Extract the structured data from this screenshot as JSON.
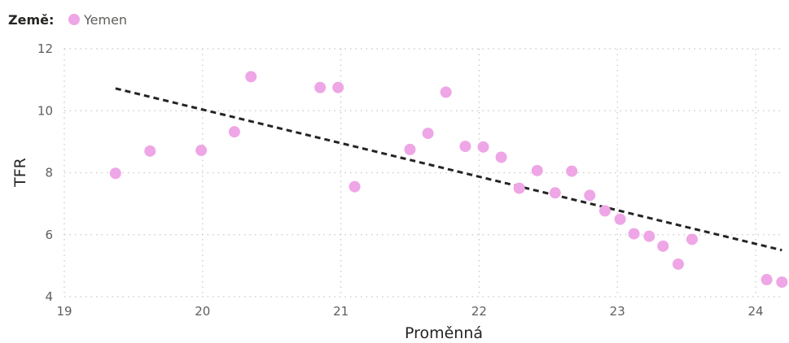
{
  "legend": {
    "title": "Země:",
    "items": [
      {
        "label": "Yemen",
        "color": "#eea6e6"
      }
    ]
  },
  "chart_data": {
    "type": "scatter",
    "title": "",
    "xlabel": "Proměnná",
    "ylabel": "TFR",
    "xlim": [
      19,
      24.2
    ],
    "ylim": [
      4,
      12
    ],
    "x_ticks": [
      19,
      20,
      21,
      22,
      23,
      24
    ],
    "y_ticks": [
      4,
      6,
      8,
      10,
      12
    ],
    "grid": "dotted",
    "legend_position": "top-left",
    "series": [
      {
        "name": "Yemen",
        "color": "#eea6e6",
        "points": [
          {
            "x": 19.37,
            "y": 7.98
          },
          {
            "x": 19.62,
            "y": 8.7
          },
          {
            "x": 19.99,
            "y": 8.72
          },
          {
            "x": 20.23,
            "y": 9.32
          },
          {
            "x": 20.35,
            "y": 11.1
          },
          {
            "x": 20.85,
            "y": 10.75
          },
          {
            "x": 20.98,
            "y": 10.75
          },
          {
            "x": 21.1,
            "y": 7.55
          },
          {
            "x": 21.5,
            "y": 8.75
          },
          {
            "x": 21.63,
            "y": 9.27
          },
          {
            "x": 21.76,
            "y": 10.6
          },
          {
            "x": 21.9,
            "y": 8.85
          },
          {
            "x": 22.03,
            "y": 8.83
          },
          {
            "x": 22.16,
            "y": 8.5
          },
          {
            "x": 22.29,
            "y": 7.5
          },
          {
            "x": 22.42,
            "y": 8.07
          },
          {
            "x": 22.55,
            "y": 7.35
          },
          {
            "x": 22.67,
            "y": 8.05
          },
          {
            "x": 22.8,
            "y": 7.27
          },
          {
            "x": 22.91,
            "y": 6.77
          },
          {
            "x": 23.02,
            "y": 6.5
          },
          {
            "x": 23.12,
            "y": 6.03
          },
          {
            "x": 23.23,
            "y": 5.95
          },
          {
            "x": 23.33,
            "y": 5.63
          },
          {
            "x": 23.44,
            "y": 5.05
          },
          {
            "x": 23.54,
            "y": 5.85
          },
          {
            "x": 24.08,
            "y": 4.55
          },
          {
            "x": 24.19,
            "y": 4.47
          }
        ]
      }
    ],
    "trendline": {
      "style": "dashed",
      "color": "#252423",
      "start": {
        "x": 19.37,
        "y": 10.72
      },
      "end": {
        "x": 24.19,
        "y": 5.5
      }
    }
  }
}
